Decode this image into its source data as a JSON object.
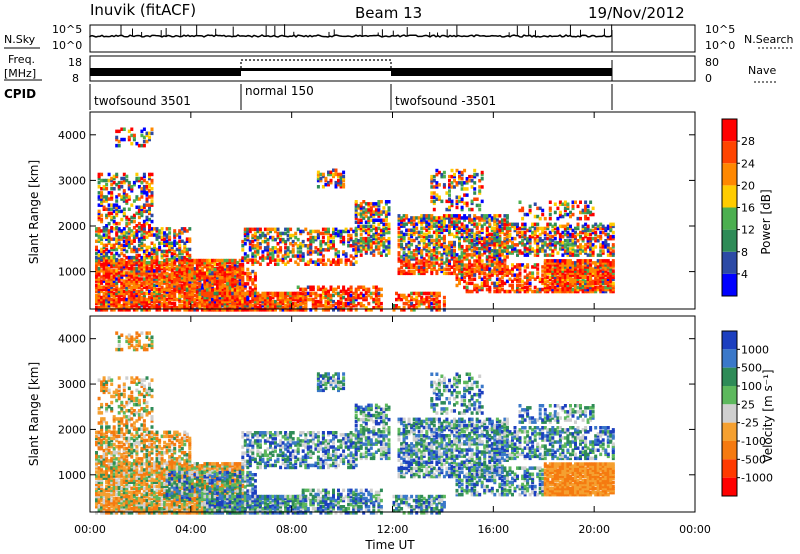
{
  "header": {
    "station": "Inuvik (fitACF)",
    "beam": "Beam 13",
    "date": "19/Nov/2012"
  },
  "status_panels": {
    "nsky_label": "N.Sky",
    "nsky_ticks": [
      "10^5",
      "10^0"
    ],
    "nsearch_ticks": [
      "10^5",
      "10^0"
    ],
    "nsearch_label": "N.Search",
    "freq_label_1": "Freq.",
    "freq_label_2": "[MHz]",
    "freq_ticks": [
      "18",
      "8"
    ],
    "nave_ticks": [
      "80",
      "0"
    ],
    "nave_label": "Nave",
    "cpid_label": "CPID",
    "cpid_segments": [
      "twofsound 3501",
      "normal 150",
      "twofsound -3501"
    ]
  },
  "chart_data": [
    {
      "type": "heatmap",
      "name": "power",
      "ylabel": "Slant Range [km]",
      "yticks": [
        "1000",
        "2000",
        "3000",
        "4000"
      ],
      "ylim": [
        180,
        4500
      ],
      "xlim_hours": [
        0,
        24
      ],
      "colorbar_label": "Power [dB]",
      "colorbar_ticks": [
        "4",
        "8",
        "12",
        "16",
        "20",
        "24",
        "28"
      ],
      "colors": [
        "#0000ff",
        "#2c4aa5",
        "#2e8b57",
        "#4caf50",
        "#ffcc00",
        "#ff8800",
        "#ff4400",
        "#ff0000"
      ]
    },
    {
      "type": "heatmap",
      "name": "velocity",
      "ylabel": "Slant Range [km]",
      "yticks": [
        "1000",
        "2000",
        "3000",
        "4000"
      ],
      "ylim": [
        180,
        4500
      ],
      "xlim_hours": [
        0,
        24
      ],
      "colorbar_label": "Velocity [m s⁻¹]",
      "colorbar_ticks": [
        "1000",
        "500",
        "100",
        "25",
        "-25",
        "-100",
        "-500",
        "-1000"
      ],
      "colors": [
        "#1c3fbf",
        "#3a78c9",
        "#2e8b57",
        "#5db85d",
        "#cfcfcf",
        "#f5a030",
        "#f57a10",
        "#ff3a00",
        "#ff0000"
      ]
    }
  ],
  "xaxis": {
    "ticks": [
      "00:00",
      "04:00",
      "08:00",
      "12:00",
      "16:00",
      "20:00",
      "00:00"
    ],
    "label": "Time UT"
  }
}
